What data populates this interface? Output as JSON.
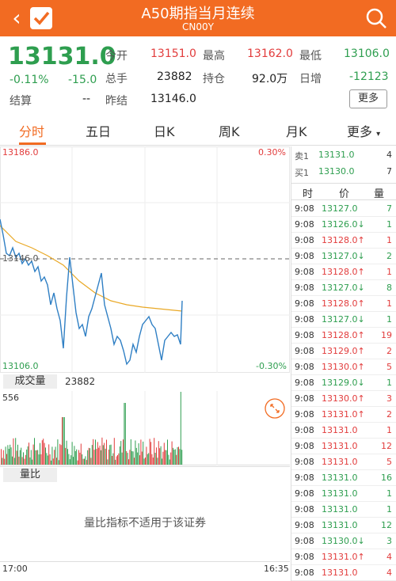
{
  "header": {
    "title": "A50期指当月连续",
    "subtitle": "CN00Y",
    "back_icon": "chevron-left-icon",
    "watch_icon": "checkmark-icon",
    "search_icon": "search-icon",
    "color": "#f26b22"
  },
  "quote": {
    "price": "13131.0",
    "change_pct": "-0.11%",
    "change": "-15.0",
    "open_label": "今开",
    "open": "13151.0",
    "high_label": "最高",
    "high": "13162.0",
    "low_label": "最低",
    "low": "13106.0",
    "volume_label": "总手",
    "volume": "23882",
    "oi_label": "持仓",
    "oi": "92.0万",
    "daily_inc_label": "日增",
    "daily_inc": "-12123",
    "settle_label": "结算",
    "settle": "--",
    "prev_settle_label": "昨结",
    "prev_settle": "13146.0",
    "more_label": "更多"
  },
  "tabs": [
    "分时",
    "五日",
    "日K",
    "周K",
    "月K",
    "更多"
  ],
  "chart": {
    "y_top": "13186.0",
    "y_bottom": "13106.0",
    "pct_top": "0.30%",
    "pct_bottom": "-0.30%",
    "mid_label": "13146.0",
    "time_start": "17:00",
    "time_end": "16:35"
  },
  "volume": {
    "label": "成交量",
    "value": "23882",
    "max_label": "556"
  },
  "ratio": {
    "label": "量比",
    "notice": "量比指标不适用于该证券"
  },
  "orderbook": {
    "ask_label": "卖1",
    "ask_price": "13131.0",
    "ask_qty": "4",
    "bid_label": "买1",
    "bid_price": "13130.0",
    "bid_qty": "7"
  },
  "ticks_header": [
    "时",
    "价",
    "量"
  ],
  "ticks": [
    {
      "t": "9:08",
      "p": "13127.0",
      "d": "",
      "q": "7",
      "c": "g"
    },
    {
      "t": "9:08",
      "p": "13126.0↓",
      "d": "",
      "q": "1",
      "c": "g"
    },
    {
      "t": "9:08",
      "p": "13128.0↑",
      "d": "",
      "q": "1",
      "c": "r"
    },
    {
      "t": "9:08",
      "p": "13127.0↓",
      "d": "",
      "q": "2",
      "c": "g"
    },
    {
      "t": "9:08",
      "p": "13128.0↑",
      "d": "",
      "q": "1",
      "c": "r"
    },
    {
      "t": "9:08",
      "p": "13127.0↓",
      "d": "",
      "q": "8",
      "c": "g"
    },
    {
      "t": "9:08",
      "p": "13128.0↑",
      "d": "",
      "q": "1",
      "c": "r"
    },
    {
      "t": "9:08",
      "p": "13127.0↓",
      "d": "",
      "q": "1",
      "c": "g"
    },
    {
      "t": "9:08",
      "p": "13128.0↑",
      "d": "",
      "q": "19",
      "c": "r"
    },
    {
      "t": "9:08",
      "p": "13129.0↑",
      "d": "",
      "q": "2",
      "c": "r"
    },
    {
      "t": "9:08",
      "p": "13130.0↑",
      "d": "",
      "q": "5",
      "c": "r"
    },
    {
      "t": "9:08",
      "p": "13129.0↓",
      "d": "",
      "q": "1",
      "c": "g"
    },
    {
      "t": "9:08",
      "p": "13130.0↑",
      "d": "",
      "q": "3",
      "c": "r"
    },
    {
      "t": "9:08",
      "p": "13131.0↑",
      "d": "",
      "q": "2",
      "c": "r"
    },
    {
      "t": "9:08",
      "p": "13131.0",
      "d": "",
      "q": "1",
      "c": "r"
    },
    {
      "t": "9:08",
      "p": "13131.0",
      "d": "",
      "q": "12",
      "c": "r"
    },
    {
      "t": "9:08",
      "p": "13131.0",
      "d": "",
      "q": "5",
      "c": "r"
    },
    {
      "t": "9:08",
      "p": "13131.0",
      "d": "",
      "q": "16",
      "c": "g"
    },
    {
      "t": "9:08",
      "p": "13131.0",
      "d": "",
      "q": "1",
      "c": "g"
    },
    {
      "t": "9:08",
      "p": "13131.0",
      "d": "",
      "q": "1",
      "c": "g"
    },
    {
      "t": "9:08",
      "p": "13131.0",
      "d": "",
      "q": "12",
      "c": "g"
    },
    {
      "t": "9:08",
      "p": "13130.0↓",
      "d": "",
      "q": "3",
      "c": "g"
    },
    {
      "t": "9:08",
      "p": "13131.0↑",
      "d": "",
      "q": "4",
      "c": "r"
    },
    {
      "t": "9:08",
      "p": "13131.0",
      "d": "",
      "q": "4",
      "c": "r"
    }
  ],
  "colors": {
    "up": "#e23c3c",
    "down": "#2e9e4f",
    "accent": "#f26b22",
    "price_line": "#2f7fc4",
    "avg_line": "#e9a825"
  }
}
